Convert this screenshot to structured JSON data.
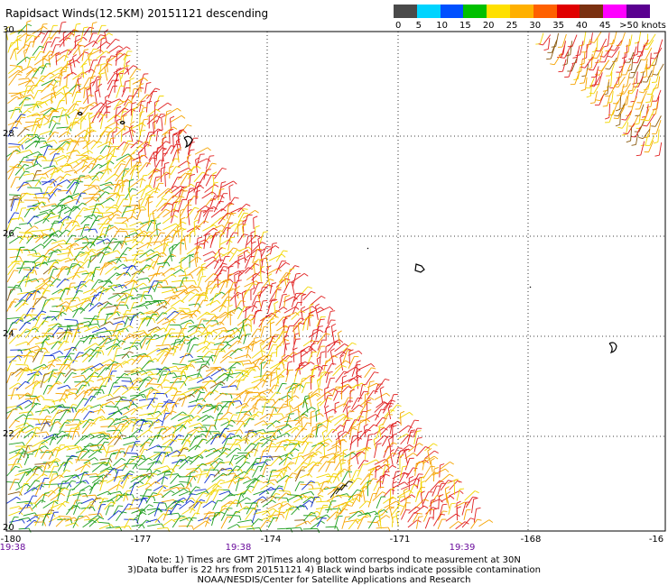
{
  "title": "Rapidsact Winds(12.5KM) 20151121 descending",
  "legend": {
    "ticks": [
      "0",
      "5",
      "10",
      "15",
      "20",
      "25",
      "30",
      "35",
      "40",
      "45",
      ">50 knots"
    ],
    "colors": [
      "#4a4a4a",
      "#00d4ff",
      "#0050ff",
      "#00c000",
      "#ffe000",
      "#ffb000",
      "#ff6000",
      "#e00000",
      "#7a3010",
      "#ff00ff",
      "#5a0090"
    ]
  },
  "map": {
    "lat_labels": [
      "30",
      "28",
      "26",
      "24",
      "22",
      "20"
    ],
    "lon_labels": [
      "-180",
      "-177",
      "-174",
      "-171",
      "-168",
      "-16"
    ],
    "time_labels": [
      "19:38",
      "19:38",
      "19:39"
    ]
  },
  "notes": [
    "Note: 1) Times are GMT 2)Times along bottom correspond to measurement at 30N",
    "3)Data buffer is 22 hrs from 20151121 4) Black wind barbs indicate possible contamination",
    "NOAA/NESDIS/Center for Satellite Applications and Research"
  ]
}
